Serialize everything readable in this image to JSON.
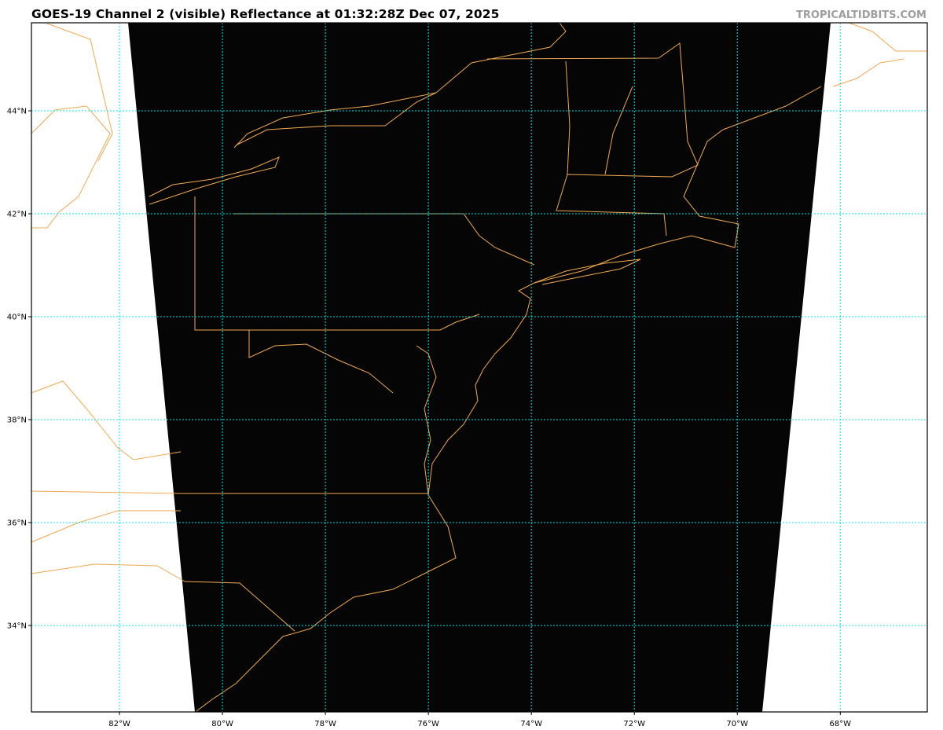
{
  "header": {
    "title": "GOES-19 Channel 2 (visible) Reflectance at 01:32:28Z Dec 07, 2025",
    "brand": "TROPICALTIDBITS.COM"
  },
  "map": {
    "extent_deg": {
      "lon_min": -83.71,
      "lon_max": -66.31,
      "lat_min": 32.32,
      "lat_max": 45.71
    },
    "gridlines_on": true,
    "colors": {
      "gridline": "#00e5e5",
      "coastline": "#f0a850",
      "satellite_swath": "#050505",
      "background": "#ffffff"
    },
    "lon_ticks": [
      {
        "value": -82,
        "label": "82°W"
      },
      {
        "value": -80,
        "label": "80°W"
      },
      {
        "value": -78,
        "label": "78°W"
      },
      {
        "value": -76,
        "label": "76°W"
      },
      {
        "value": -74,
        "label": "74°W"
      },
      {
        "value": -72,
        "label": "72°W"
      },
      {
        "value": -70,
        "label": "70°W"
      },
      {
        "value": -68,
        "label": "68°W"
      }
    ],
    "lat_ticks": [
      {
        "value": 44,
        "label": "44°N"
      },
      {
        "value": 42,
        "label": "42°N"
      },
      {
        "value": 40,
        "label": "40°N"
      },
      {
        "value": 38,
        "label": "38°N"
      },
      {
        "value": 36,
        "label": "36°N"
      },
      {
        "value": 34,
        "label": "34°N"
      }
    ]
  }
}
